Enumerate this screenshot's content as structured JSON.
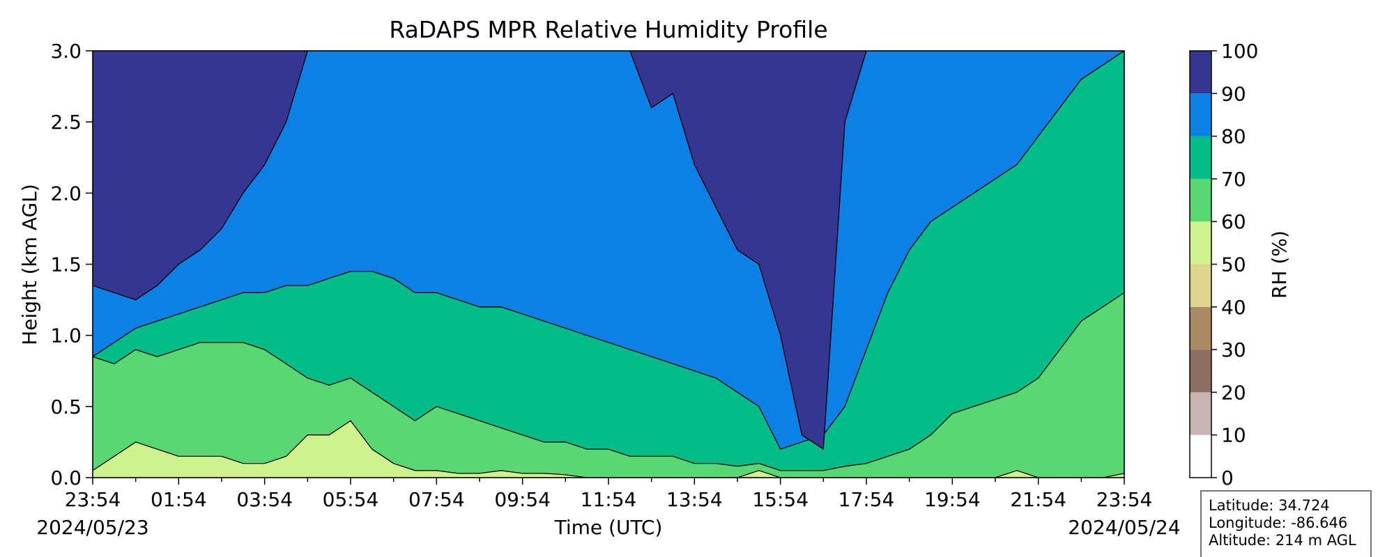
{
  "chart_data": {
    "type": "heatmap",
    "title": "RaDAPS MPR Relative Humidity Profile",
    "xlabel": "Time (UTC)",
    "ylabel": "Height (km AGL)",
    "x_ticks": [
      "23:54",
      "01:54",
      "03:54",
      "05:54",
      "07:54",
      "09:54",
      "11:54",
      "13:54",
      "15:54",
      "17:54",
      "19:54",
      "21:54",
      "23:54"
    ],
    "date_start": "2024/05/23",
    "date_end": "2024/05/24",
    "y_ticks": [
      "0.0",
      "0.5",
      "1.0",
      "1.5",
      "2.0",
      "2.5",
      "3.0"
    ],
    "ylim": [
      0.0,
      3.0
    ],
    "colorbar": {
      "label": "RH (%)",
      "ticks": [
        "0",
        "10",
        "20",
        "30",
        "40",
        "50",
        "60",
        "70",
        "80",
        "90",
        "100"
      ],
      "levels": [
        0,
        10,
        20,
        30,
        40,
        50,
        60,
        70,
        80,
        90,
        100
      ],
      "colors": [
        "#ffffff",
        "#c8b4b0",
        "#8e6e63",
        "#a88b63",
        "#e0d48c",
        "#cef28e",
        "#57d873",
        "#00bd88",
        "#0d80e6",
        "#353592"
      ]
    },
    "field": {
      "description_of_layers": "height (km) of RH contour boundaries versus time (h since 23:54)",
      "hours": [
        0,
        0.5,
        1,
        1.5,
        2,
        2.5,
        3,
        3.5,
        4,
        4.5,
        5,
        5.5,
        6,
        6.5,
        7,
        7.5,
        8,
        8.5,
        9,
        9.5,
        10,
        10.5,
        11,
        11.5,
        12,
        12.5,
        13,
        13.5,
        14,
        14.5,
        15,
        15.5,
        16,
        16.5,
        17,
        17.5,
        18,
        18.5,
        19,
        19.5,
        20,
        20.5,
        21,
        21.5,
        22,
        22.5,
        23,
        23.5,
        24
      ],
      "h60": [
        0.05,
        0.15,
        0.25,
        0.2,
        0.15,
        0.15,
        0.15,
        0.1,
        0.1,
        0.15,
        0.3,
        0.3,
        0.4,
        0.2,
        0.1,
        0.05,
        0.05,
        0.03,
        0.03,
        0.05,
        0.03,
        0.03,
        0.02,
        0.0,
        0.0,
        0.0,
        0.0,
        0.0,
        0.0,
        0.0,
        0.0,
        0.05,
        0.0,
        0.0,
        0.0,
        0.0,
        0.0,
        0.0,
        0.0,
        0.0,
        0.0,
        0.0,
        0.0,
        0.05,
        0.0,
        0.0,
        0.0,
        0.0,
        0.03
      ],
      "h70": [
        0.85,
        0.8,
        0.9,
        0.85,
        0.9,
        0.95,
        0.95,
        0.95,
        0.9,
        0.8,
        0.7,
        0.65,
        0.7,
        0.6,
        0.5,
        0.4,
        0.5,
        0.45,
        0.4,
        0.35,
        0.3,
        0.25,
        0.25,
        0.2,
        0.2,
        0.15,
        0.15,
        0.15,
        0.1,
        0.1,
        0.08,
        0.1,
        0.05,
        0.05,
        0.05,
        0.08,
        0.1,
        0.15,
        0.2,
        0.3,
        0.45,
        0.5,
        0.55,
        0.6,
        0.7,
        0.9,
        1.1,
        1.2,
        1.3
      ],
      "h80": [
        0.85,
        0.95,
        1.05,
        1.1,
        1.15,
        1.2,
        1.25,
        1.3,
        1.3,
        1.35,
        1.35,
        1.4,
        1.45,
        1.45,
        1.4,
        1.3,
        1.3,
        1.25,
        1.2,
        1.2,
        1.15,
        1.1,
        1.05,
        1.0,
        0.95,
        0.9,
        0.85,
        0.8,
        0.75,
        0.7,
        0.6,
        0.5,
        0.2,
        0.25,
        0.3,
        0.5,
        0.9,
        1.3,
        1.6,
        1.8,
        1.9,
        2.0,
        2.1,
        2.2,
        2.4,
        2.6,
        2.8,
        2.9,
        3.0
      ],
      "h90": [
        1.35,
        1.3,
        1.25,
        1.35,
        1.5,
        1.6,
        1.75,
        2.0,
        2.2,
        2.5,
        3.0,
        3.0,
        3.0,
        3.0,
        3.0,
        3.0,
        3.0,
        3.0,
        3.0,
        3.0,
        3.0,
        3.0,
        3.0,
        3.0,
        3.0,
        3.0,
        2.6,
        2.7,
        2.2,
        1.9,
        1.6,
        1.5,
        1.0,
        0.3,
        0.2,
        2.5,
        3.0,
        3.0,
        3.0,
        3.0,
        3.0,
        3.0,
        3.0,
        3.0,
        3.0,
        3.0,
        3.0,
        3.0,
        3.0
      ]
    },
    "info_box": {
      "latitude": "Latitude: 34.724",
      "longitude": "Longitude: -86.646",
      "altitude": "Altitude: 214 m AGL"
    }
  }
}
